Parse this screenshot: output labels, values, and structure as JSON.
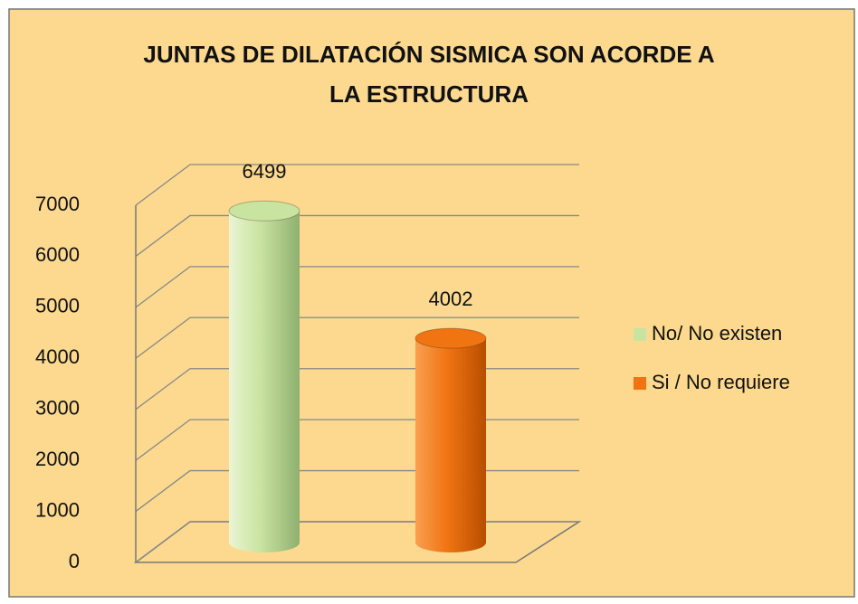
{
  "chart_data": {
    "type": "bar3d",
    "title": "JUNTAS DE DILATACIÓN SISMICA SON ACORDE A LA ESTRUCTURA",
    "series": [
      {
        "name": "No/ No existen",
        "color": "#c9e3a0",
        "values": [
          6499
        ]
      },
      {
        "name": "Si / No requiere",
        "color": "#f07412",
        "values": [
          4002
        ]
      }
    ],
    "ylim": [
      0,
      7000
    ],
    "yticks": [
      0,
      1000,
      2000,
      3000,
      4000,
      5000,
      6000,
      7000
    ],
    "grid": true,
    "legend": "right"
  }
}
